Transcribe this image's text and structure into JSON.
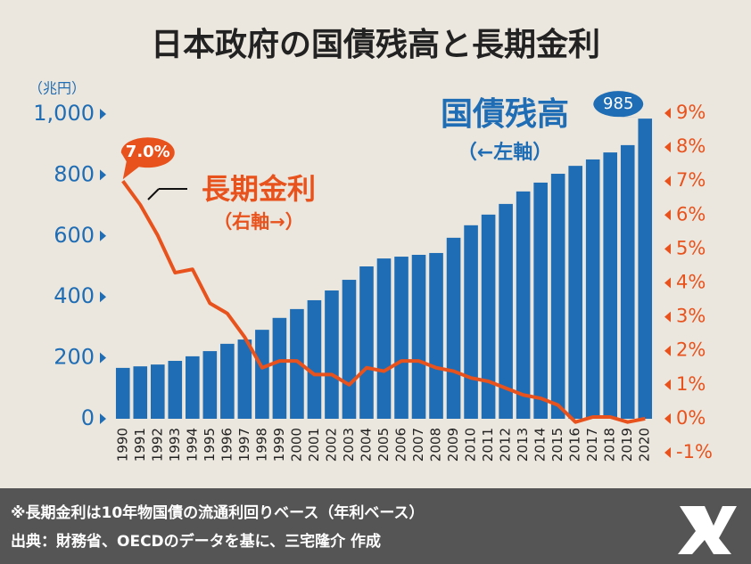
{
  "chart_data": {
    "type": "bar",
    "title": "日本政府の国債残高と長期金利",
    "y_unit": "（兆円）",
    "categories": [
      "1990",
      "1991",
      "1992",
      "1993",
      "1994",
      "1995",
      "1996",
      "1997",
      "1998",
      "1999",
      "2000",
      "2001",
      "2002",
      "2003",
      "2004",
      "2005",
      "2006",
      "2007",
      "2008",
      "2009",
      "2010",
      "2011",
      "2012",
      "2013",
      "2014",
      "2015",
      "2016",
      "2017",
      "2018",
      "2019",
      "2020"
    ],
    "series": [
      {
        "name": "国債残高",
        "type": "bar",
        "color": "#1f6db4",
        "values": [
          167,
          172,
          178,
          190,
          205,
          222,
          246,
          260,
          292,
          331,
          360,
          389,
          421,
          456,
          500,
          526,
          532,
          538,
          544,
          594,
          635,
          670,
          705,
          746,
          775,
          804,
          830,
          851,
          874,
          898,
          985
        ],
        "value_labels": {
          "30": "985"
        }
      },
      {
        "name": "長期金利",
        "type": "line",
        "axis": "y2",
        "color": "#e8521d",
        "values": [
          7.0,
          6.3,
          5.4,
          4.3,
          4.4,
          3.4,
          3.1,
          2.4,
          1.5,
          1.7,
          1.7,
          1.3,
          1.3,
          1.0,
          1.5,
          1.4,
          1.7,
          1.7,
          1.5,
          1.4,
          1.2,
          1.1,
          0.9,
          0.7,
          0.6,
          0.4,
          -0.1,
          0.05,
          0.05,
          -0.1,
          0.0
        ],
        "value_labels": {
          "0": "7.0%"
        }
      }
    ],
    "annotations": [
      "（←左軸）",
      "（右軸→）"
    ],
    "ylim": [
      0,
      1000
    ],
    "yticks": [
      0,
      200,
      400,
      600,
      800,
      {
        "value": 1000,
        "label": "1,000"
      }
    ],
    "y2lim": [
      -1,
      9
    ],
    "y2ticks": [
      {
        "value": -1,
        "label": "-1%"
      },
      {
        "value": 0,
        "label": "0%"
      },
      {
        "value": 1,
        "label": "1%"
      },
      {
        "value": 2,
        "label": "2%"
      },
      {
        "value": 3,
        "label": "3%"
      },
      {
        "value": 4,
        "label": "4%"
      },
      {
        "value": 5,
        "label": "5%"
      },
      {
        "value": 6,
        "label": "6%"
      },
      {
        "value": 7,
        "label": "7%"
      },
      {
        "value": 8,
        "label": "8%"
      },
      {
        "value": 9,
        "label": "9%"
      }
    ],
    "footer": [
      "※長期金利は10年物国債の流通利回りベース（年利ベース）",
      "出典：財務省、OECDのデータを基に、三宅隆介 作成"
    ]
  }
}
